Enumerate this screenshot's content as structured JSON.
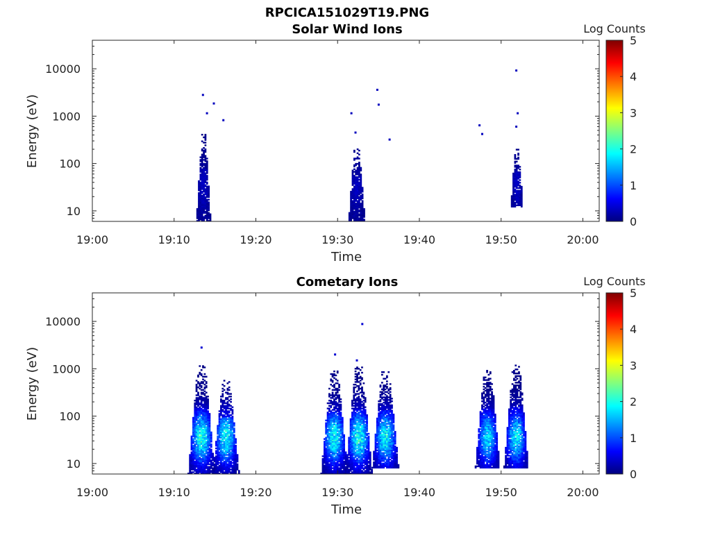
{
  "figure": {
    "title": "RPCICA151029T19.PNG"
  },
  "chart_data": [
    {
      "type": "heatmap",
      "title": "Solar Wind Ions",
      "xlabel": "Time",
      "ylabel": "Energy (eV)",
      "x_ticks": [
        "19:00",
        "19:10",
        "19:20",
        "19:30",
        "19:40",
        "19:50",
        "20:00"
      ],
      "x_range": [
        "19:00",
        "20:02"
      ],
      "y_ticks": [
        10,
        100,
        1000,
        10000
      ],
      "y_scale": "log",
      "y_range": [
        6,
        40000
      ],
      "colorbar": {
        "label": "Log Counts",
        "ticks": [
          0,
          1,
          2,
          3,
          4,
          5
        ],
        "range": [
          0,
          5
        ],
        "colormap": "jet"
      },
      "bursts": [
        {
          "time": "19:13:30",
          "emin": 6,
          "emax": 420,
          "peak": 0.25,
          "spread_min": 0.7
        },
        {
          "time": "19:32:15",
          "emin": 6,
          "emax": 240,
          "peak": 0.25,
          "spread_min": 0.8
        },
        {
          "time": "19:51:50",
          "emin": 12,
          "emax": 200,
          "peak": 0.25,
          "spread_min": 0.6
        }
      ],
      "sparse_points": [
        {
          "time": "19:13:30",
          "energy": 2800,
          "value": 0.3
        },
        {
          "time": "19:14:00",
          "energy": 1150,
          "value": 0.3
        },
        {
          "time": "19:14:50",
          "energy": 1850,
          "value": 0.3
        },
        {
          "time": "19:16:00",
          "energy": 820,
          "value": 0.3
        },
        {
          "time": "19:31:40",
          "energy": 1150,
          "value": 0.3
        },
        {
          "time": "19:32:10",
          "energy": 450,
          "value": 0.3
        },
        {
          "time": "19:34:50",
          "energy": 3600,
          "value": 0.3
        },
        {
          "time": "19:35:00",
          "energy": 1750,
          "value": 0.3
        },
        {
          "time": "19:36:20",
          "energy": 320,
          "value": 0.3
        },
        {
          "time": "19:47:20",
          "energy": 640,
          "value": 0.3
        },
        {
          "time": "19:47:40",
          "energy": 420,
          "value": 0.3
        },
        {
          "time": "19:51:50",
          "energy": 9200,
          "value": 0.3
        },
        {
          "time": "19:52:00",
          "energy": 1150,
          "value": 0.3
        },
        {
          "time": "19:51:50",
          "energy": 600,
          "value": 0.3
        }
      ]
    },
    {
      "type": "heatmap",
      "title": "Cometary Ions",
      "xlabel": "Time",
      "ylabel": "Energy (eV)",
      "x_ticks": [
        "19:00",
        "19:10",
        "19:20",
        "19:30",
        "19:40",
        "19:50",
        "20:00"
      ],
      "x_range": [
        "19:00",
        "20:02"
      ],
      "y_ticks": [
        10,
        100,
        1000,
        10000
      ],
      "y_scale": "log",
      "y_range": [
        6,
        40000
      ],
      "colorbar": {
        "label": "Log Counts",
        "ticks": [
          0,
          1,
          2,
          3,
          4,
          5
        ],
        "range": [
          0,
          5
        ],
        "colormap": "jet"
      },
      "bursts": [
        {
          "time": "19:13:15",
          "emin": 6,
          "emax": 1200,
          "peak": 1.9,
          "spread_min": 1.3
        },
        {
          "time": "19:16:15",
          "emin": 6,
          "emax": 550,
          "peak": 1.8,
          "spread_min": 1.3
        },
        {
          "time": "19:29:30",
          "emin": 6,
          "emax": 900,
          "peak": 1.8,
          "spread_min": 1.3
        },
        {
          "time": "19:32:30",
          "emin": 6,
          "emax": 1100,
          "peak": 1.9,
          "spread_min": 1.3
        },
        {
          "time": "19:35:45",
          "emin": 8,
          "emax": 900,
          "peak": 1.8,
          "spread_min": 1.3
        },
        {
          "time": "19:48:15",
          "emin": 8,
          "emax": 1000,
          "peak": 1.6,
          "spread_min": 1.2
        },
        {
          "time": "19:51:45",
          "emin": 8,
          "emax": 1200,
          "peak": 1.7,
          "spread_min": 1.2
        }
      ],
      "sparse_points": [
        {
          "time": "19:13:20",
          "energy": 2800,
          "value": 0.4
        },
        {
          "time": "19:33:00",
          "energy": 8800,
          "value": 0.4
        },
        {
          "time": "19:29:40",
          "energy": 2000,
          "value": 0.4
        },
        {
          "time": "19:32:20",
          "energy": 1500,
          "value": 0.4
        }
      ]
    }
  ]
}
